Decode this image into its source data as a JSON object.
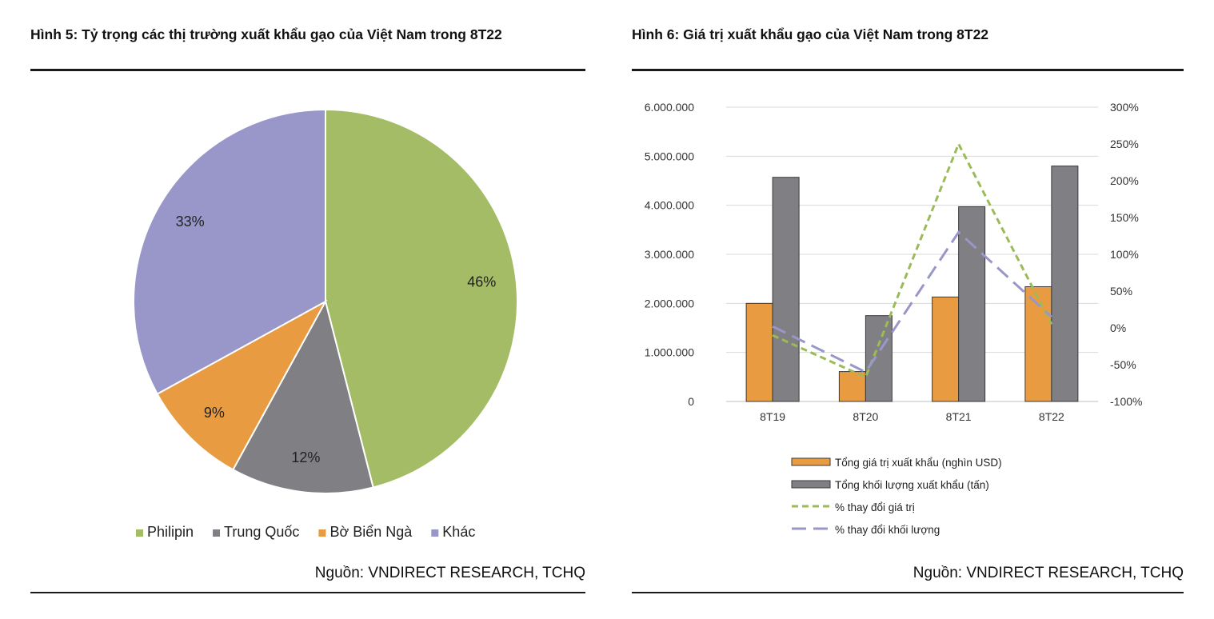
{
  "source_text": "Nguồn: VNDIRECT RESEARCH, TCHQ",
  "chart_data": [
    {
      "type": "pie",
      "title": "Hình 5: Tỷ trọng các thị trường xuất khẩu gạo của Việt Nam trong 8T22",
      "slices": [
        {
          "name": "Philipin",
          "value": 46,
          "label": "46%",
          "color": "#a3bc65"
        },
        {
          "name": "Trung Quốc",
          "value": 12,
          "label": "12%",
          "color": "#808084"
        },
        {
          "name": "Bờ Biển Ngà",
          "value": 9,
          "label": "9%",
          "color": "#e89b40"
        },
        {
          "name": "Khác",
          "value": 33,
          "label": "33%",
          "color": "#9997c9"
        }
      ],
      "legend_position": "bottom"
    },
    {
      "type": "bar",
      "title": "Hình 6: Giá trị xuất khẩu gạo của Việt Nam trong 8T22",
      "categories": [
        "8T19",
        "8T20",
        "8T21",
        "8T22"
      ],
      "series": [
        {
          "name": "Tổng giá trị xuất khẩu (nghìn USD)",
          "type": "bar",
          "axis": "left",
          "color": "#e89b40",
          "values": [
            2000000,
            610000,
            2130000,
            2340000
          ]
        },
        {
          "name": "Tổng khối lượng xuất khẩu (tấn)",
          "type": "bar",
          "axis": "left",
          "color": "#808084",
          "values": [
            4570000,
            1750000,
            3970000,
            4800000
          ]
        },
        {
          "name": "% thay đổi giá trị",
          "type": "line",
          "style": "dashed",
          "axis": "right",
          "color": "#9bbb59",
          "values": [
            -10,
            -67,
            250,
            5
          ]
        },
        {
          "name": "% thay đổi khối lượng",
          "type": "line",
          "style": "longdash",
          "axis": "right",
          "color": "#9997c9",
          "values": [
            2,
            -60,
            130,
            15
          ]
        }
      ],
      "y_left": {
        "ylim": [
          0,
          6000000
        ],
        "ticks": [
          "0",
          "1.000.000",
          "2.000.000",
          "3.000.000",
          "4.000.000",
          "5.000.000",
          "6.000.000"
        ]
      },
      "y_right": {
        "ylim": [
          -100,
          300
        ],
        "ticks": [
          "-100%",
          "-50%",
          "0%",
          "50%",
          "100%",
          "150%",
          "200%",
          "250%",
          "300%"
        ]
      },
      "grid": true,
      "legend_position": "bottom"
    }
  ]
}
